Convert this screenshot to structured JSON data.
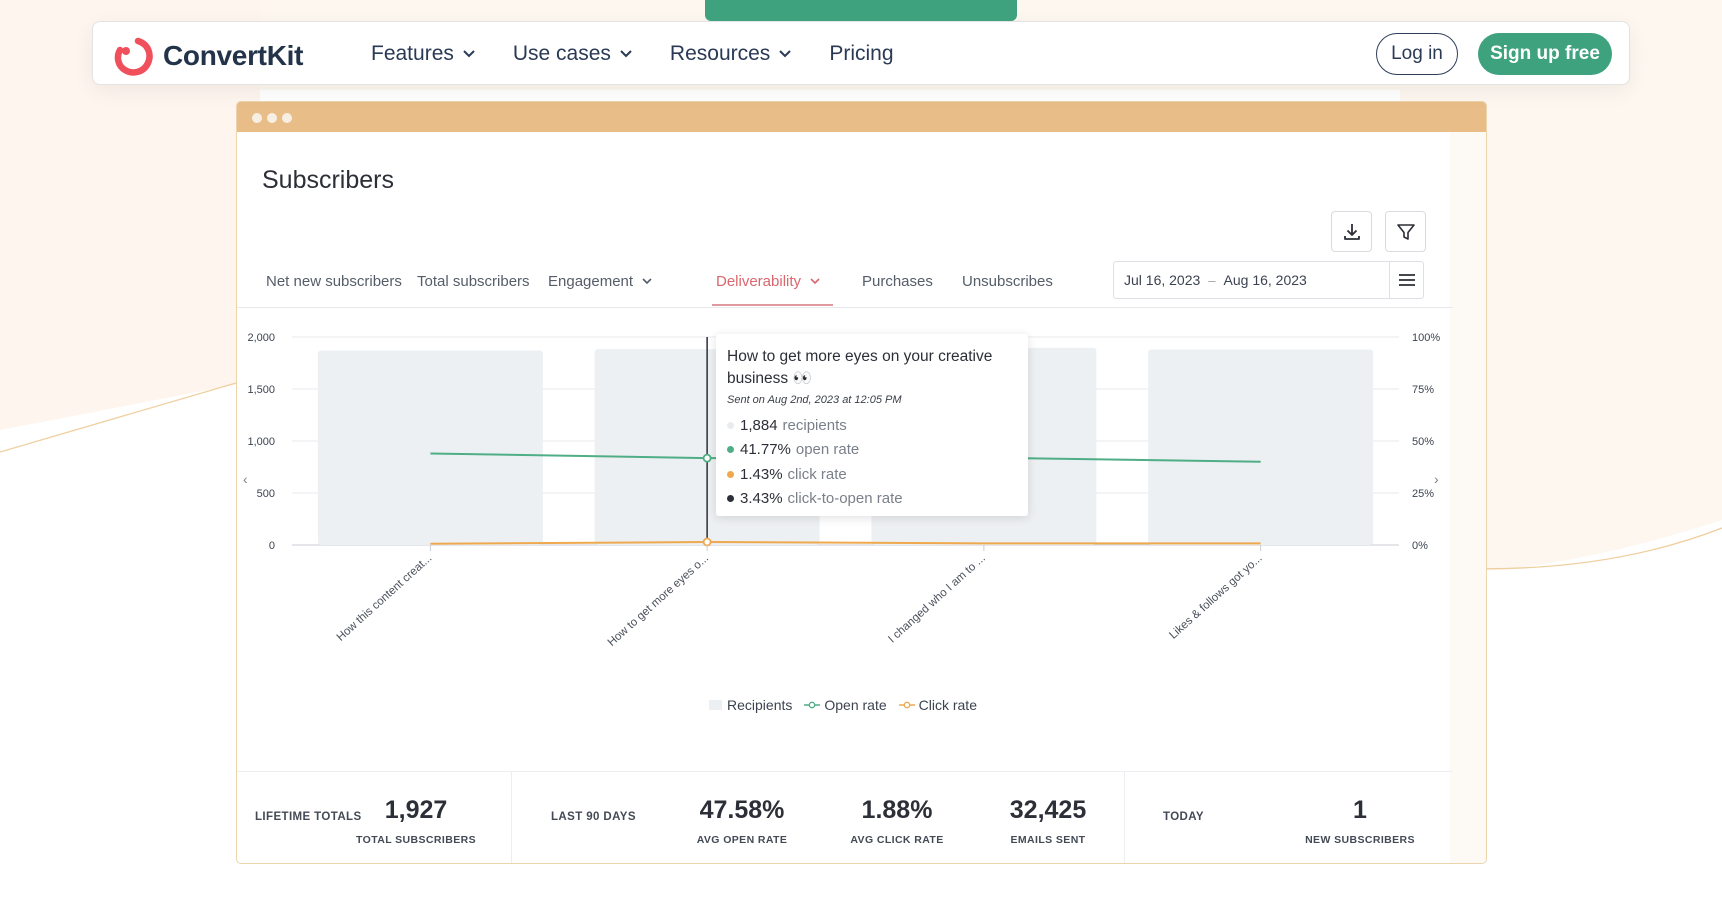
{
  "nav": {
    "brand": "ConvertKit",
    "links": [
      {
        "label": "Features",
        "dropdown": true
      },
      {
        "label": "Use cases",
        "dropdown": true
      },
      {
        "label": "Resources",
        "dropdown": true
      },
      {
        "label": "Pricing",
        "dropdown": false
      }
    ],
    "login_label": "Log in",
    "signup_label": "Sign up free"
  },
  "page": {
    "title": "Subscribers",
    "tabs": [
      {
        "label": "Net new subscribers"
      },
      {
        "label": "Total subscribers"
      },
      {
        "label": "Engagement"
      },
      {
        "label": "Deliverability"
      },
      {
        "label": "Purchases"
      },
      {
        "label": "Unsubscribes"
      }
    ],
    "date_from": "Jul 16, 2023",
    "date_sep": "–",
    "date_to": "Aug 16, 2023"
  },
  "tooltip": {
    "title": "How to get more eyes on your creative business 👀",
    "subtitle": "Sent on Aug 2nd, 2023 at 12:05 PM",
    "rows": [
      {
        "value": "1,884",
        "label": "recipients",
        "color": "#e9ecef"
      },
      {
        "value": "41.77%",
        "label": "open rate",
        "color": "#4fae85"
      },
      {
        "value": "1.43%",
        "label": "click rate",
        "color": "#eea94e"
      },
      {
        "value": "3.43%",
        "label": "click-to-open rate",
        "color": "#2c2f37"
      }
    ]
  },
  "chart_data": {
    "type": "bar",
    "categories": [
      "How this content creat...",
      "How to get more eyes o...",
      "I changed who I am to ...",
      "Likes & follows got yo..."
    ],
    "series": [
      {
        "name": "Recipients",
        "type": "bar",
        "axis": "left",
        "values": [
          1870,
          1884,
          1895,
          1880
        ],
        "color": "#edf0f3"
      },
      {
        "name": "Open rate",
        "type": "line",
        "axis": "right",
        "values": [
          44,
          41.77,
          42,
          40
        ],
        "color": "#4fae85"
      },
      {
        "name": "Click rate",
        "type": "line",
        "axis": "right",
        "values": [
          0.6,
          1.43,
          0.8,
          0.8
        ],
        "color": "#eea94e"
      }
    ],
    "y_left_ticks": [
      "2,000",
      "1,500",
      "1,000",
      "500",
      "0"
    ],
    "y_left_range": [
      0,
      2000
    ],
    "y_right_ticks": [
      "100%",
      "75%",
      "50%",
      "25%",
      "0%"
    ],
    "y_right_range": [
      0,
      100
    ],
    "highlight_index": 1,
    "grid": true,
    "legend": "bottom-center"
  },
  "totals": {
    "lifetime_label": "LIFETIME TOTALS",
    "lifetime_value": "1,927",
    "lifetime_cap": "TOTAL SUBSCRIBERS",
    "last90_label": "LAST 90 DAYS",
    "open_value": "47.58%",
    "open_cap": "AVG OPEN RATE",
    "click_value": "1.88%",
    "click_cap": "AVG CLICK RATE",
    "sent_value": "32,425",
    "sent_cap": "EMAILS SENT",
    "today_label": "TODAY",
    "today_value": "1",
    "today_cap": "NEW SUBSCRIBERS"
  },
  "colors": {
    "accent_green": "#3ea27f",
    "window_bar": "#e8bd87",
    "active_tab": "#d9676e"
  }
}
